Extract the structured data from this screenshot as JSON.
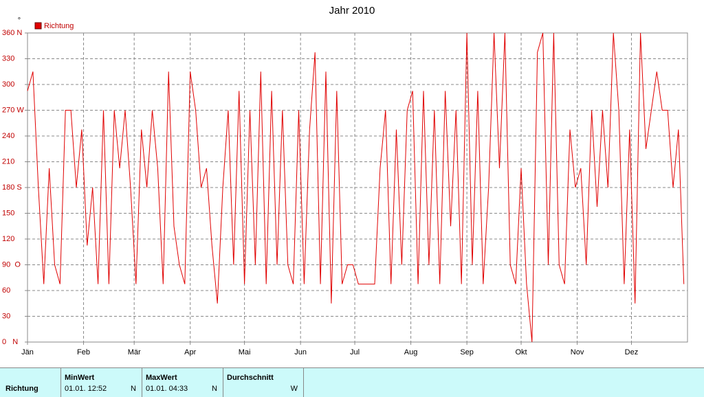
{
  "chart_data": {
    "type": "line",
    "title": "Jahr 2010",
    "y_unit": "°",
    "x": [
      0,
      3,
      6,
      9,
      12,
      15,
      18,
      21,
      24,
      27,
      30,
      33,
      36,
      39,
      42,
      45,
      48,
      51,
      54,
      57,
      60,
      63,
      66,
      69,
      72,
      75,
      78,
      81,
      84,
      87,
      90,
      93,
      96,
      99,
      102,
      105,
      108,
      111,
      114,
      117,
      120,
      123,
      126,
      129,
      132,
      135,
      138,
      141,
      144,
      147,
      150,
      153,
      156,
      159,
      162,
      165,
      168,
      171,
      174,
      177,
      180,
      183,
      186,
      189,
      192,
      195,
      198,
      201,
      204,
      207,
      210,
      213,
      216,
      219,
      222,
      225,
      228,
      231,
      234,
      237,
      240,
      243,
      246,
      249,
      252,
      255,
      258,
      261,
      264,
      267,
      270,
      273,
      276,
      279,
      282,
      285,
      288,
      291,
      294,
      297,
      300,
      303,
      306,
      309,
      312,
      315,
      318,
      321,
      324,
      327,
      330,
      333,
      336,
      339,
      342,
      345,
      348,
      351,
      354,
      357,
      360,
      363
    ],
    "series": [
      {
        "name": "Richtung",
        "color": "#e00000",
        "values": [
          292.5,
          315,
          180,
          67.5,
          202.5,
          90,
          67.5,
          270,
          270,
          180,
          247.5,
          112.5,
          180,
          67.5,
          270,
          67.5,
          270,
          202.5,
          270,
          180,
          67.5,
          247.5,
          180,
          270,
          202.5,
          67.5,
          315,
          135,
          90,
          67.5,
          315,
          270,
          180,
          202.5,
          112.5,
          45,
          180,
          270,
          90,
          292.5,
          67.5,
          270,
          90,
          315,
          67.5,
          292.5,
          90,
          270,
          90,
          67.5,
          270,
          67.5,
          247.5,
          337.5,
          67.5,
          315,
          45,
          292.5,
          67.5,
          90,
          90,
          67.5,
          67.5,
          67.5,
          67.5,
          202.5,
          270,
          67.5,
          247.5,
          90,
          270,
          292.5,
          67.5,
          292.5,
          90,
          270,
          67.5,
          292.5,
          135,
          270,
          67.5,
          360,
          90,
          292.5,
          67.5,
          180,
          360,
          202.5,
          360,
          90,
          67.5,
          202.5,
          67.5,
          0,
          337.5,
          360,
          90,
          360,
          90,
          67.5,
          247.5,
          180,
          202.5,
          90,
          270,
          157.5,
          270,
          180,
          360,
          270,
          67.5,
          247.5,
          45,
          360,
          225,
          270,
          315,
          270,
          270,
          180,
          247.5,
          67.5
        ]
      }
    ],
    "xlim": [
      0,
      365
    ],
    "xticks": [
      {
        "value": 0,
        "label": "Jän"
      },
      {
        "value": 31,
        "label": "Feb"
      },
      {
        "value": 59,
        "label": "Mär"
      },
      {
        "value": 90,
        "label": "Apr"
      },
      {
        "value": 120,
        "label": "Mai"
      },
      {
        "value": 151,
        "label": "Jun"
      },
      {
        "value": 181,
        "label": "Jul"
      },
      {
        "value": 212,
        "label": "Aug"
      },
      {
        "value": 243,
        "label": "Sep"
      },
      {
        "value": 273,
        "label": "Okt"
      },
      {
        "value": 304,
        "label": "Nov"
      },
      {
        "value": 334,
        "label": "Dez"
      }
    ],
    "ylim": [
      0,
      360
    ],
    "yticks": [
      {
        "value": 0,
        "label": "0   N"
      },
      30,
      60,
      {
        "value": 90,
        "label": "90  O"
      },
      120,
      150,
      {
        "value": 180,
        "label": "180 S"
      },
      210,
      240,
      {
        "value": 270,
        "label": "270 W"
      },
      300,
      330,
      {
        "value": 360,
        "label": "360 N"
      }
    ],
    "grid": true,
    "legend": "top-left"
  },
  "table": {
    "row_header": "Richtung",
    "columns": [
      {
        "title": "MinWert",
        "date": "01.01.  12:52",
        "dir": "N"
      },
      {
        "title": "MaxWert",
        "date": "01.01.  04:33",
        "dir": "N"
      },
      {
        "title": "Durchschnitt",
        "dir": "W"
      }
    ]
  }
}
